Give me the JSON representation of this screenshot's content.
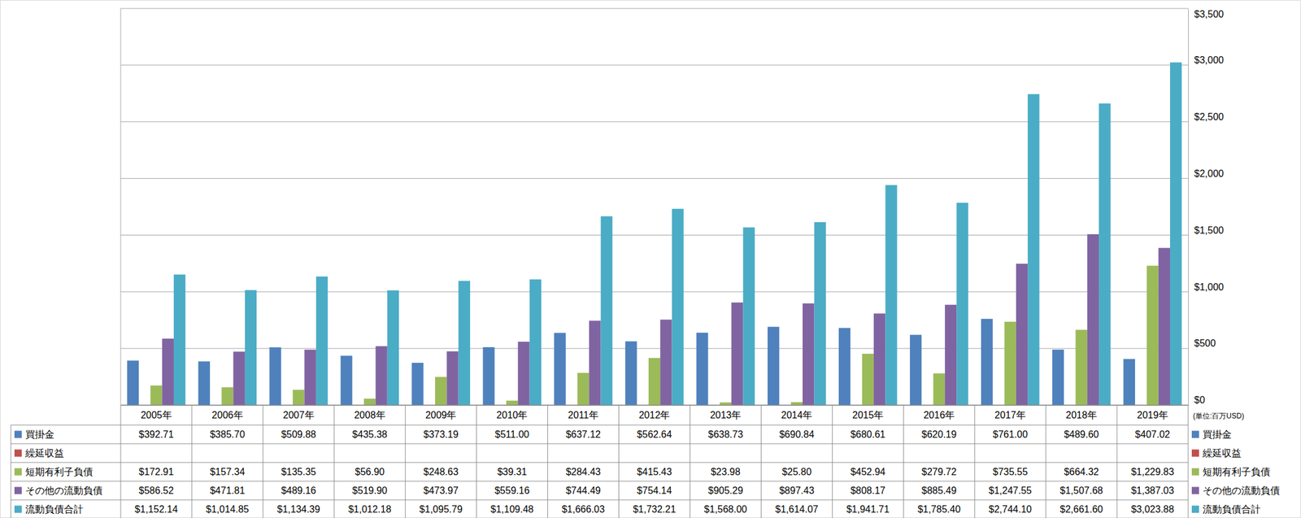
{
  "chart_data": {
    "type": "bar",
    "categories": [
      "2005年",
      "2006年",
      "2007年",
      "2008年",
      "2009年",
      "2010年",
      "2011年",
      "2012年",
      "2013年",
      "2014年",
      "2015年",
      "2016年",
      "2017年",
      "2018年",
      "2019年"
    ],
    "series": [
      {
        "name": "買掛金",
        "color": "#4f81bd",
        "values": [
          392.71,
          385.7,
          509.88,
          435.38,
          373.19,
          511.0,
          637.12,
          562.64,
          638.73,
          690.84,
          680.61,
          620.19,
          761.0,
          489.6,
          407.02
        ],
        "value_labels": [
          "$392.71",
          "$385.70",
          "$509.88",
          "$435.38",
          "$373.19",
          "$511.00",
          "$637.12",
          "$562.64",
          "$638.73",
          "$690.84",
          "$680.61",
          "$620.19",
          "$761.00",
          "$489.60",
          "$407.02"
        ]
      },
      {
        "name": "繰延収益",
        "color": "#c0504d",
        "values": [
          null,
          null,
          null,
          null,
          null,
          null,
          null,
          null,
          null,
          null,
          null,
          null,
          null,
          null,
          null
        ],
        "value_labels": [
          null,
          null,
          null,
          null,
          null,
          null,
          null,
          null,
          null,
          null,
          null,
          null,
          null,
          null,
          null
        ]
      },
      {
        "name": "短期有利子負債",
        "color": "#9bbb59",
        "values": [
          172.91,
          157.34,
          135.35,
          56.9,
          248.63,
          39.31,
          284.43,
          415.43,
          23.98,
          25.8,
          452.94,
          279.72,
          735.55,
          664.32,
          1229.83
        ],
        "value_labels": [
          "$172.91",
          "$157.34",
          "$135.35",
          "$56.90",
          "$248.63",
          "$39.31",
          "$284.43",
          "$415.43",
          "$23.98",
          "$25.80",
          "$452.94",
          "$279.72",
          "$735.55",
          "$664.32",
          "$1,229.83"
        ]
      },
      {
        "name": "その他の流動負債",
        "color": "#8064a2",
        "values": [
          586.52,
          471.81,
          489.16,
          519.9,
          473.97,
          559.16,
          744.49,
          754.14,
          905.29,
          897.43,
          808.17,
          885.49,
          1247.55,
          1507.68,
          1387.03
        ],
        "value_labels": [
          "$586.52",
          "$471.81",
          "$489.16",
          "$519.90",
          "$473.97",
          "$559.16",
          "$744.49",
          "$754.14",
          "$905.29",
          "$897.43",
          "$808.17",
          "$885.49",
          "$1,247.55",
          "$1,507.68",
          "$1,387.03"
        ]
      },
      {
        "name": "流動負債合計",
        "color": "#4bacc6",
        "values": [
          1152.14,
          1014.85,
          1134.39,
          1012.18,
          1095.79,
          1109.48,
          1666.03,
          1732.21,
          1568.0,
          1614.07,
          1941.71,
          1785.4,
          2744.1,
          2661.6,
          3023.88
        ],
        "value_labels": [
          "$1,152.14",
          "$1,014.85",
          "$1,134.39",
          "$1,012.18",
          "$1,095.79",
          "$1,109.48",
          "$1,666.03",
          "$1,732.21",
          "$1,568.00",
          "$1,614.07",
          "$1,941.71",
          "$1,785.40",
          "$2,744.10",
          "$2,661.60",
          "$3,023.88"
        ]
      }
    ],
    "ylim": [
      0,
      3500
    ],
    "yticks": [
      {
        "value": 0,
        "label": "$0"
      },
      {
        "value": 500,
        "label": "$500"
      },
      {
        "value": 1000,
        "label": "$1,000"
      },
      {
        "value": 1500,
        "label": "$1,500"
      },
      {
        "value": 2000,
        "label": "$2,000"
      },
      {
        "value": 2500,
        "label": "$2,500"
      },
      {
        "value": 3000,
        "label": "$3,000"
      },
      {
        "value": 3500,
        "label": "$3,500"
      }
    ],
    "grid": true,
    "annotations": [
      "(単位:百万USD)"
    ]
  }
}
